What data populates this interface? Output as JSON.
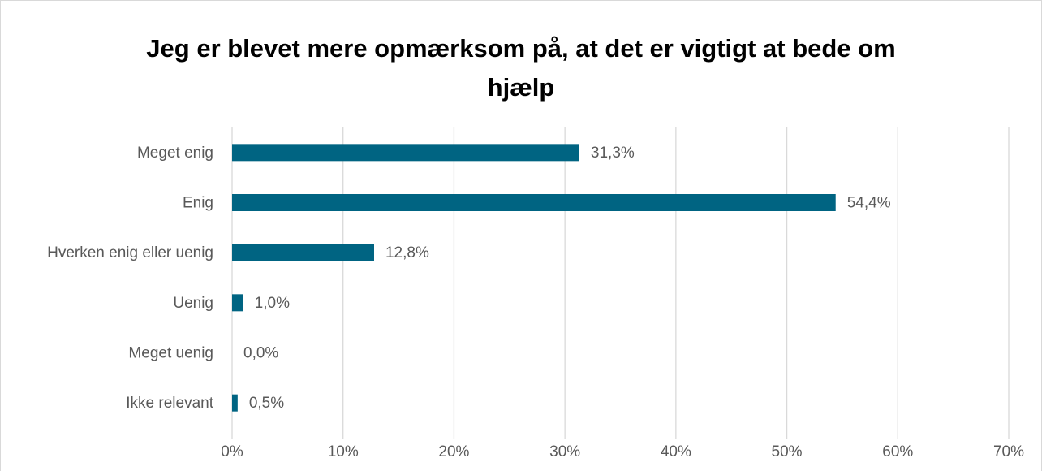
{
  "chart_data": {
    "type": "barh",
    "title": "Jeg er blevet mere opmærksom på, at det er vigtigt at bede om hjælp",
    "categories": [
      "Meget enig",
      "Enig",
      "Hverken enig eller uenig",
      "Uenig",
      "Meget uenig",
      "Ikke relevant"
    ],
    "values": [
      31.3,
      54.4,
      12.8,
      1.0,
      0.0,
      0.5
    ],
    "value_labels": [
      "31,3%",
      "54,4%",
      "12,8%",
      "1,0%",
      "0,0%",
      "0,5%"
    ],
    "color": "#006482",
    "xlim": [
      0,
      70
    ],
    "xticks": [
      {
        "value": 0,
        "label": "0%"
      },
      {
        "value": 10,
        "label": "10%"
      },
      {
        "value": 20,
        "label": "20%"
      },
      {
        "value": 30,
        "label": "30%"
      },
      {
        "value": 40,
        "label": "40%"
      },
      {
        "value": 50,
        "label": "50%"
      },
      {
        "value": 60,
        "label": "60%"
      },
      {
        "value": 70,
        "label": "70%"
      }
    ],
    "grid": true
  }
}
